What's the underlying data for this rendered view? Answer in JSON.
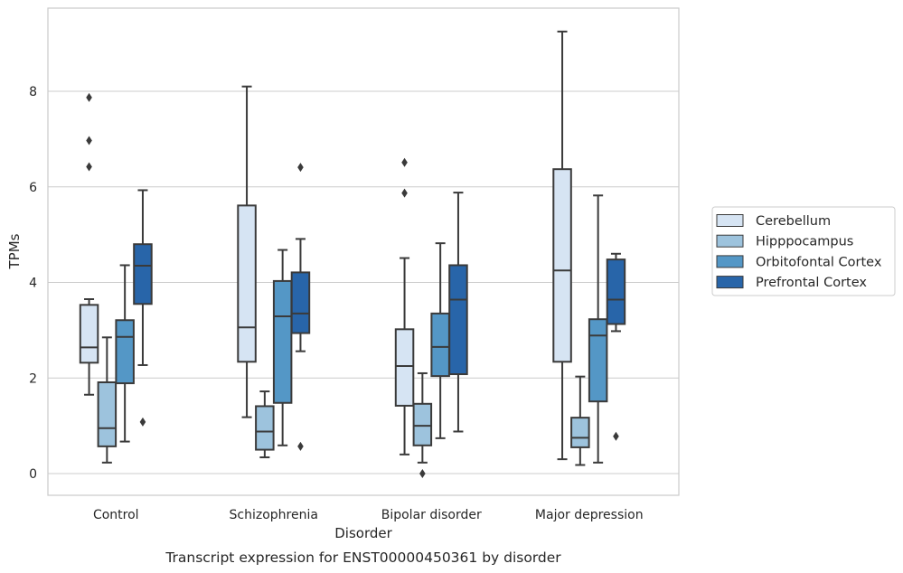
{
  "chart_data": {
    "type": "box",
    "title": "",
    "caption": "Transcript expression for ENST00000450361 by disorder",
    "xlabel": "Disorder",
    "ylabel": "TPMs",
    "ylim": [
      -0.45,
      9.75
    ],
    "yticks": [
      0,
      2,
      4,
      6,
      8
    ],
    "grid": "horizontal",
    "legend_placement": "right",
    "categories": [
      "Control",
      "Schizophrenia",
      "Bipolar disorder",
      "Major depression"
    ],
    "series": [
      {
        "name": "Cerebellum",
        "color": "#d6e4f3",
        "boxes": [
          {
            "whisker_low": 1.65,
            "q1": 2.32,
            "median": 2.64,
            "q3": 3.53,
            "whisker_high": 3.65,
            "outliers": [
              6.42,
              6.97,
              7.87
            ]
          },
          {
            "whisker_low": 1.18,
            "q1": 2.34,
            "median": 3.06,
            "q3": 5.61,
            "whisker_high": 8.1,
            "outliers": []
          },
          {
            "whisker_low": 0.4,
            "q1": 1.42,
            "median": 2.25,
            "q3": 3.02,
            "whisker_high": 4.51,
            "outliers": [
              5.87,
              6.51
            ]
          },
          {
            "whisker_low": 0.3,
            "q1": 2.34,
            "median": 4.25,
            "q3": 6.37,
            "whisker_high": 9.25,
            "outliers": []
          }
        ]
      },
      {
        "name": "Hipppocampus",
        "color": "#9dc3dd",
        "boxes": [
          {
            "whisker_low": 0.23,
            "q1": 0.57,
            "median": 0.95,
            "q3": 1.91,
            "whisker_high": 2.85,
            "outliers": []
          },
          {
            "whisker_low": 0.34,
            "q1": 0.5,
            "median": 0.88,
            "q3": 1.41,
            "whisker_high": 1.72,
            "outliers": []
          },
          {
            "whisker_low": 0.23,
            "q1": 0.59,
            "median": 1.0,
            "q3": 1.46,
            "whisker_high": 2.1,
            "outliers": [
              0.0
            ]
          },
          {
            "whisker_low": 0.18,
            "q1": 0.55,
            "median": 0.75,
            "q3": 1.17,
            "whisker_high": 2.03,
            "outliers": []
          }
        ]
      },
      {
        "name": "Orbitofontal Cortex",
        "color": "#5497c6",
        "boxes": [
          {
            "whisker_low": 0.67,
            "q1": 1.89,
            "median": 2.86,
            "q3": 3.21,
            "whisker_high": 4.36,
            "outliers": []
          },
          {
            "whisker_low": 0.59,
            "q1": 1.48,
            "median": 3.29,
            "q3": 4.03,
            "whisker_high": 4.68,
            "outliers": []
          },
          {
            "whisker_low": 0.74,
            "q1": 2.04,
            "median": 2.65,
            "q3": 3.35,
            "whisker_high": 4.82,
            "outliers": []
          },
          {
            "whisker_low": 0.23,
            "q1": 1.51,
            "median": 2.89,
            "q3": 3.23,
            "whisker_high": 5.82,
            "outliers": []
          }
        ]
      },
      {
        "name": "Prefrontal Cortex",
        "color": "#2865a9",
        "boxes": [
          {
            "whisker_low": 2.27,
            "q1": 3.55,
            "median": 4.35,
            "q3": 4.8,
            "whisker_high": 5.93,
            "outliers": [
              1.08
            ]
          },
          {
            "whisker_low": 2.56,
            "q1": 2.94,
            "median": 3.35,
            "q3": 4.21,
            "whisker_high": 4.91,
            "outliers": [
              0.57,
              6.41
            ]
          },
          {
            "whisker_low": 0.88,
            "q1": 2.08,
            "median": 3.64,
            "q3": 4.36,
            "whisker_high": 5.88,
            "outliers": []
          },
          {
            "whisker_low": 2.98,
            "q1": 3.13,
            "median": 3.64,
            "q3": 4.48,
            "whisker_high": 4.6,
            "outliers": [
              0.78
            ]
          }
        ]
      }
    ]
  }
}
